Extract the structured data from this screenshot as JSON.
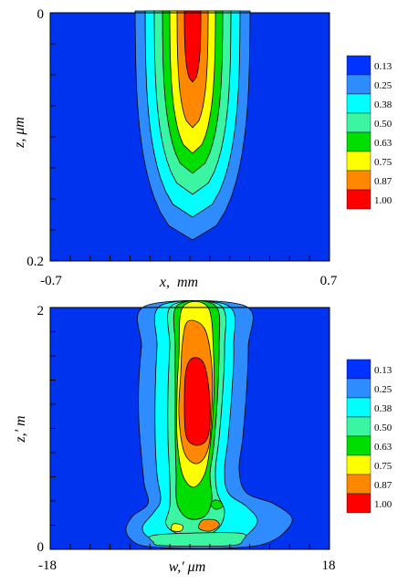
{
  "chart_data": [
    {
      "type": "heatmap",
      "title": "",
      "xlabel": "x,  mm",
      "ylabel": "z, μm",
      "xlim": [
        -0.7,
        0.7
      ],
      "ylim": [
        0,
        0.2
      ],
      "y_inverted": true,
      "x_tick_labels": [
        "-0.7",
        "0.7"
      ],
      "y_tick_labels": [
        "0",
        "0.2"
      ],
      "levels": [
        0.13,
        0.25,
        0.38,
        0.5,
        0.63,
        0.75,
        0.87,
        1.0
      ],
      "legend_labels": [
        "0.13",
        "0.25",
        "0.38",
        "0.50",
        "0.63",
        "0.75",
        "0.87",
        "1.00"
      ],
      "colors": [
        "#0033ff",
        "#2f8cff",
        "#00ffff",
        "#3cf5a3",
        "#00dd00",
        "#ffff00",
        "#ff8800",
        "#ff0000"
      ],
      "background_color": "#0033ee",
      "legend_position": "right"
    },
    {
      "type": "heatmap",
      "title": "",
      "xlabel": "w,' μm",
      "ylabel": "z,' m",
      "xlim": [
        -18,
        18
      ],
      "ylim": [
        0,
        2
      ],
      "x_tick_labels": [
        "-18",
        "18"
      ],
      "y_tick_labels": [
        "0",
        "2"
      ],
      "levels": [
        0.13,
        0.25,
        0.38,
        0.5,
        0.63,
        0.75,
        0.87,
        1.0
      ],
      "legend_labels": [
        "0.13",
        "0.25",
        "0.38",
        "0.50",
        "0.63",
        "0.75",
        "0.87",
        "1.00"
      ],
      "colors": [
        "#0033ff",
        "#2f8cff",
        "#00ffff",
        "#3cf5a3",
        "#00dd00",
        "#ffff00",
        "#ff8800",
        "#ff0000"
      ],
      "background_color": "#0033ee",
      "legend_position": "right"
    }
  ]
}
